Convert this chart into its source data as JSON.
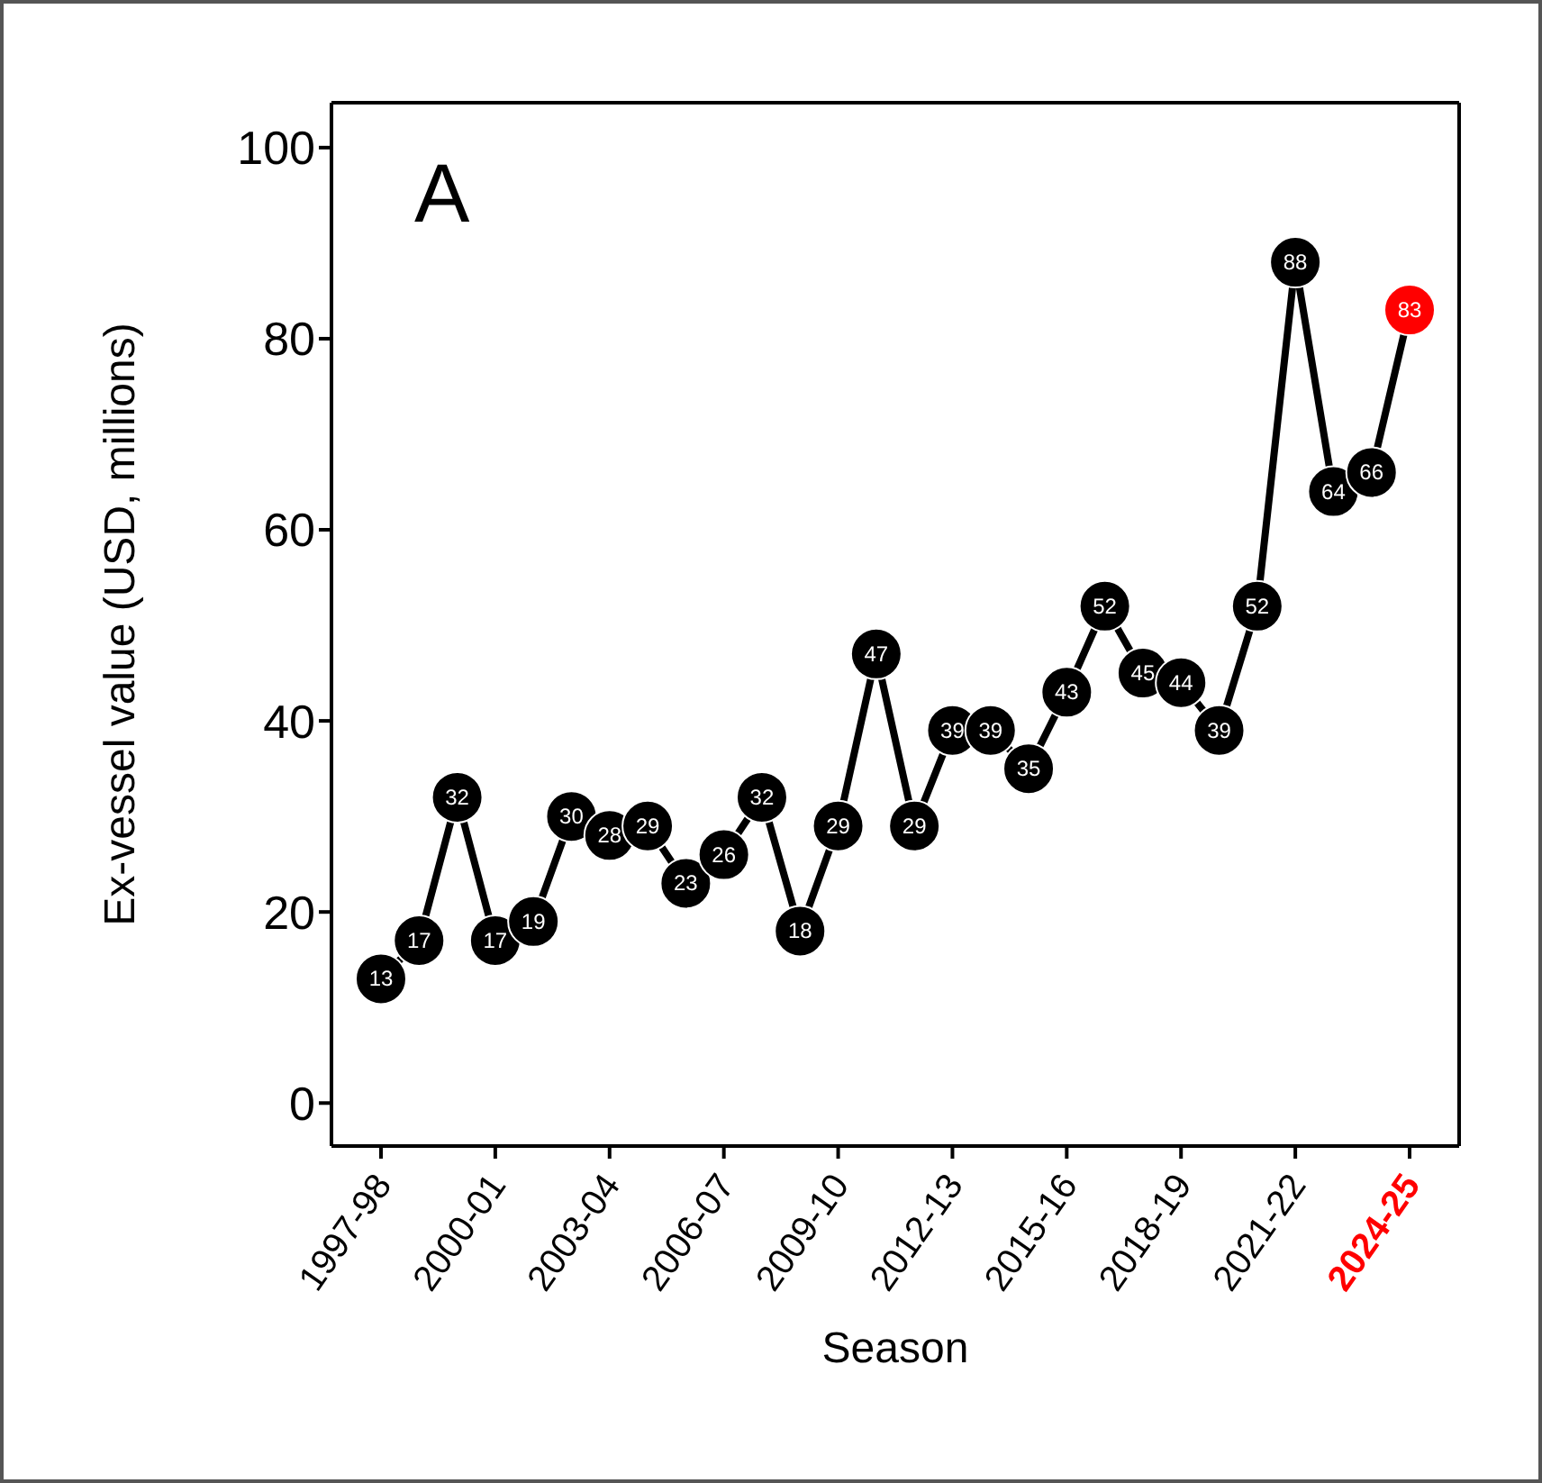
{
  "chart_data": {
    "type": "line",
    "categories": [
      "1997-98",
      null,
      null,
      "2000-01",
      null,
      null,
      "2003-04",
      null,
      null,
      "2006-07",
      null,
      null,
      "2009-10",
      null,
      null,
      "2012-13",
      null,
      null,
      "2015-16",
      null,
      null,
      "2018-19",
      null,
      null,
      "2021-22",
      null,
      null,
      "2024-25"
    ],
    "series": [
      {
        "color": "#000000",
        "values": [
          13,
          17,
          32,
          17,
          19,
          30,
          28,
          29,
          23,
          26,
          32,
          18,
          29,
          47,
          29,
          39,
          39,
          35,
          43,
          52,
          45,
          44,
          39,
          52,
          88,
          64,
          66,
          83
        ],
        "colors": [
          "#000000",
          "#000000",
          "#000000",
          "#000000",
          "#000000",
          "#000000",
          "#000000",
          "#000000",
          "#000000",
          "#000000",
          "#000000",
          "#000000",
          "#000000",
          "#000000",
          "#000000",
          "#000000",
          "#000000",
          "#000000",
          "#000000",
          "#000000",
          "#000000",
          "#000000",
          "#000000",
          "#000000",
          "#000000",
          "#000000",
          "#000000",
          "#ff0000"
        ]
      }
    ],
    "xlabel": "Season",
    "ylabel": "Ex-vessel value (USD, millions)",
    "ylim": [
      -4.5,
      104.7
    ],
    "yticks": [
      0,
      20,
      40,
      60,
      80,
      100
    ],
    "annotations": [
      "A"
    ],
    "data_labels": true,
    "marker": "circle",
    "line_style": "solid"
  }
}
